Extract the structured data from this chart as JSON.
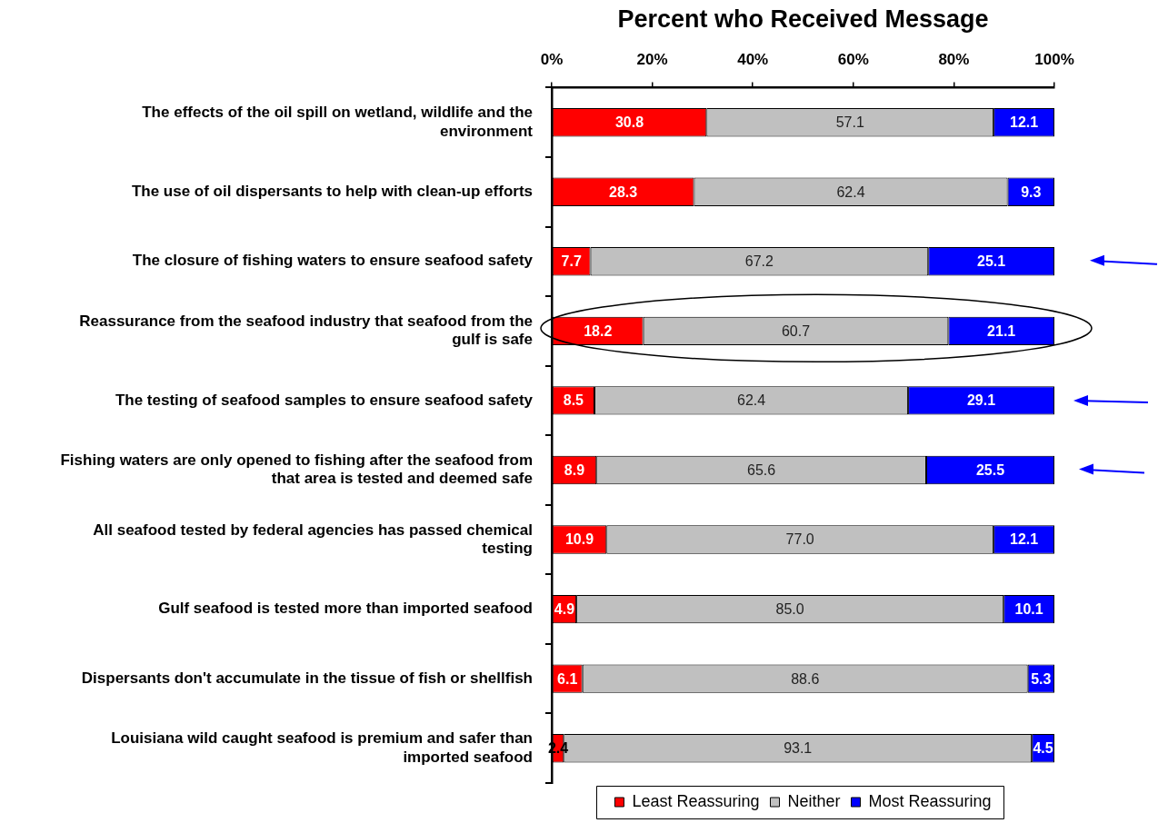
{
  "chart_data": {
    "type": "bar",
    "orientation": "horizontal",
    "stacked": true,
    "title": "Percent who Received Message",
    "categories": [
      "The effects of the oil spill on wetland, wildlife and the environment",
      "The use of oil dispersants to help with clean-up efforts",
      "The closure of fishing waters to ensure seafood safety",
      "Reassurance from the seafood industry that seafood from the gulf is safe",
      "The testing of seafood samples to ensure seafood safety",
      "Fishing waters are only opened to fishing after the seafood from that area is tested and deemed safe",
      "All seafood tested by federal agencies has passed chemical testing",
      "Gulf seafood is tested more than imported seafood",
      "Dispersants don't accumulate in the tissue of fish or shellfish",
      "Louisiana wild caught seafood is premium and safer than imported seafood"
    ],
    "series": [
      {
        "name": "Least Reassuring",
        "color": "#ff0000",
        "values": [
          30.8,
          28.3,
          7.7,
          18.2,
          8.5,
          8.9,
          10.9,
          4.9,
          6.1,
          2.4
        ],
        "value_labels": [
          "30.8",
          "28.3",
          "7.7",
          "18.2",
          "8.5",
          "8.9",
          "10.9",
          "4.9",
          "6.1",
          "2.4"
        ]
      },
      {
        "name": "Neither",
        "color": "#c0c0c0",
        "values": [
          57.1,
          62.4,
          67.2,
          60.7,
          62.4,
          65.6,
          77.0,
          85.0,
          88.6,
          93.1
        ],
        "value_labels": [
          "57.1",
          "62.4",
          "67.2",
          "60.7",
          "62.4",
          "65.6",
          "77.0",
          "85.0",
          "88.6",
          "93.1"
        ]
      },
      {
        "name": "Most Reassuring",
        "color": "#0000ff",
        "values": [
          12.1,
          9.3,
          25.1,
          21.1,
          29.1,
          25.5,
          12.1,
          10.1,
          5.3,
          4.5
        ],
        "value_labels": [
          "12.1",
          "9.3",
          "25.1",
          "21.1",
          "29.1",
          "25.5",
          "12.1",
          "10.1",
          "5.3",
          "4.5"
        ]
      }
    ],
    "xlim": [
      0,
      100
    ],
    "xticks": [
      {
        "value": 0,
        "label": "0%"
      },
      {
        "value": 20,
        "label": "20%"
      },
      {
        "value": 40,
        "label": "40%"
      },
      {
        "value": 60,
        "label": "60%"
      },
      {
        "value": 80,
        "label": "80%"
      },
      {
        "value": 100,
        "label": "100%"
      }
    ],
    "legend": "bottom",
    "grid": false
  }
}
